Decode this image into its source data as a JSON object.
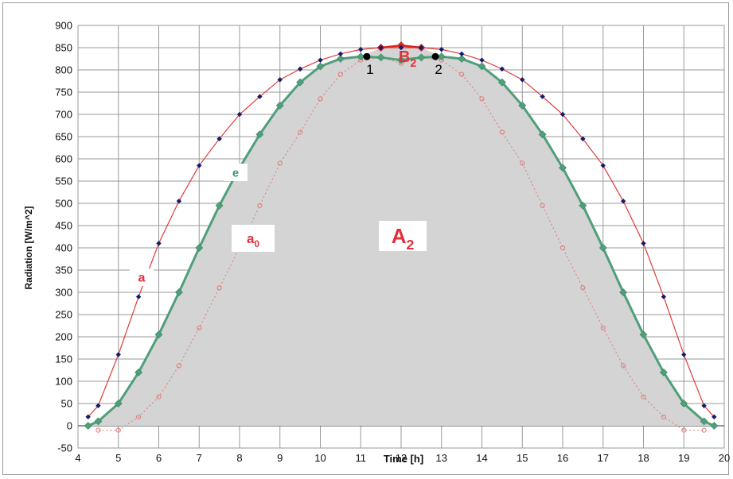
{
  "chart_data": {
    "type": "line",
    "xlabel": "Time [h]",
    "ylabel": "Radiation [W/m^2]",
    "xlim": [
      4,
      20
    ],
    "ylim": [
      -50,
      900
    ],
    "xticks": [
      4,
      5,
      6,
      7,
      8,
      9,
      10,
      11,
      12,
      13,
      14,
      15,
      16,
      17,
      18,
      19,
      20
    ],
    "yticks": [
      -50,
      0,
      50,
      100,
      150,
      200,
      250,
      300,
      350,
      400,
      450,
      500,
      550,
      600,
      650,
      700,
      750,
      800,
      850,
      900
    ],
    "grid": true,
    "colors": {
      "a": "#e03a3a",
      "a_marker": "#141a6e",
      "e": "#4f9f79",
      "a0": "#e07a7a",
      "B2": "#e02020",
      "area": "#d4d4d4",
      "grid": "#9a9a9a",
      "label_red": "#e0303a",
      "label_green": "#3d9a6f"
    },
    "series": [
      {
        "name": "a",
        "style": "solid-line-diamond",
        "x": [
          4.25,
          4.5,
          5,
          5.5,
          6,
          6.5,
          7,
          7.5,
          8,
          8.5,
          9,
          9.5,
          10,
          10.5,
          11,
          11.5,
          12,
          12.5,
          13,
          13.5,
          14,
          14.5,
          15,
          15.5,
          16,
          16.5,
          17,
          17.5,
          18,
          18.5,
          19,
          19.5,
          19.75
        ],
        "y": [
          20,
          45,
          160,
          290,
          410,
          505,
          585,
          645,
          700,
          740,
          778,
          802,
          822,
          836,
          846,
          850,
          850,
          850,
          846,
          836,
          822,
          802,
          778,
          740,
          700,
          645,
          585,
          505,
          410,
          290,
          160,
          45,
          20
        ]
      },
      {
        "name": "e",
        "style": "thick-line-diamond",
        "x": [
          4.25,
          4.5,
          5,
          5.5,
          6,
          6.5,
          7,
          7.5,
          8,
          8.5,
          9,
          9.5,
          10,
          10.5,
          11,
          11.5,
          12,
          12.5,
          13,
          13.5,
          14,
          14.5,
          15,
          15.5,
          16,
          16.5,
          17,
          17.5,
          18,
          18.5,
          19,
          19.5,
          19.75
        ],
        "y": [
          0,
          10,
          50,
          120,
          205,
          300,
          400,
          495,
          580,
          655,
          720,
          772,
          808,
          825,
          830,
          828,
          822,
          828,
          830,
          825,
          808,
          772,
          720,
          655,
          580,
          495,
          400,
          300,
          205,
          120,
          50,
          10,
          0
        ]
      },
      {
        "name": "a0",
        "style": "dotted-line-circle",
        "x": [
          4.5,
          5,
          5.5,
          6,
          6.5,
          7,
          7.5,
          8,
          8.5,
          9,
          9.5,
          10,
          10.5,
          11,
          11.5,
          12,
          12.5,
          13,
          13.5,
          14,
          14.5,
          15,
          15.5,
          16,
          16.5,
          17,
          17.5,
          18,
          18.5,
          19,
          19.5
        ],
        "y": [
          -10,
          -10,
          20,
          65,
          135,
          220,
          310,
          400,
          495,
          590,
          660,
          735,
          790,
          822,
          828,
          815,
          828,
          822,
          790,
          735,
          660,
          590,
          495,
          400,
          310,
          220,
          135,
          65,
          20,
          -10,
          -10
        ]
      },
      {
        "name": "B2",
        "style": "red-cap",
        "x": [
          11.5,
          12,
          12.5
        ],
        "y": [
          850,
          855,
          850
        ]
      }
    ],
    "markers": [
      {
        "label": "1",
        "x": 11.15,
        "y": 830
      },
      {
        "label": "2",
        "x": 12.85,
        "y": 830
      }
    ],
    "annotations": {
      "a": "a",
      "e": "e",
      "a0_main": "a",
      "a0_sub": "0",
      "A2_main": "A",
      "A2_sub": "2",
      "B2_main": "B",
      "B2_sub": "2"
    }
  }
}
